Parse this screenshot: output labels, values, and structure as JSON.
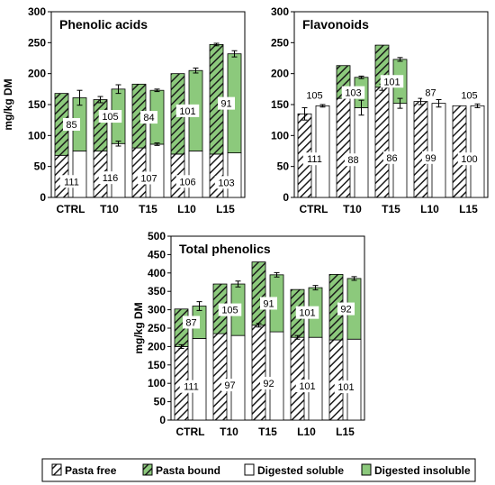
{
  "legend": [
    {
      "label": "Pasta free",
      "swatch": "pasta-free"
    },
    {
      "label": "Pasta bound",
      "swatch": "pasta-bound"
    },
    {
      "label": "Digested soluble",
      "swatch": "digested-soluble"
    },
    {
      "label": "Digested insoluble",
      "swatch": "digested-insoluble"
    }
  ],
  "colors": {
    "green_fill": "#8cc97c",
    "hatch_stroke": "#1a1a1a",
    "border": "#000000"
  },
  "chart_data": [
    {
      "type": "bar",
      "title": "Phenolic acids",
      "ylabel": "mg/kg DM",
      "ylim": [
        0,
        300
      ],
      "yticks": [
        0,
        50,
        100,
        150,
        200,
        250,
        300
      ],
      "categories": [
        "CTRL",
        "T10",
        "T15",
        "L10",
        "L15"
      ],
      "series": [
        {
          "name": "Pasta free",
          "values": [
            68,
            75,
            80,
            70,
            70
          ]
        },
        {
          "name": "Pasta bound",
          "values": [
            100,
            83,
            103,
            130,
            177
          ]
        },
        {
          "name": "Digested soluble",
          "values": [
            75,
            87,
            86,
            75,
            72
          ]
        },
        {
          "name": "Digested insoluble",
          "values": [
            86,
            88,
            87,
            130,
            160
          ]
        }
      ],
      "pasta_total_err": [
        0,
        5,
        0,
        0,
        2
      ],
      "digested_total_err": [
        12,
        7,
        2,
        4,
        5
      ],
      "soluble_err": [
        0,
        4,
        2,
        0,
        0
      ],
      "free_err": [
        0,
        0,
        0,
        0,
        0
      ],
      "labels_soluble": [
        "111",
        "116",
        "107",
        "106",
        "103"
      ],
      "labels_insoluble": [
        "85",
        "105",
        "84",
        "101",
        "91"
      ]
    },
    {
      "type": "bar",
      "title": "Flavonoids",
      "ylabel": "",
      "ylim": [
        0,
        300
      ],
      "yticks": [
        0,
        50,
        100,
        150,
        200,
        250,
        300
      ],
      "categories": [
        "CTRL",
        "T10",
        "T15",
        "L10",
        "L15"
      ],
      "series": [
        {
          "name": "Pasta free",
          "values": [
            135,
            160,
            178,
            155,
            148
          ]
        },
        {
          "name": "Pasta bound",
          "values": [
            0,
            53,
            68,
            0,
            0
          ]
        },
        {
          "name": "Digested soluble",
          "values": [
            148,
            145,
            152,
            152,
            148
          ]
        },
        {
          "name": "Digested insoluble",
          "values": [
            0,
            49,
            71,
            0,
            0
          ]
        }
      ],
      "pasta_total_err": [
        10,
        0,
        0,
        5,
        0
      ],
      "digested_total_err": [
        2,
        2,
        3,
        6,
        3
      ],
      "soluble_err": [
        2,
        12,
        8,
        6,
        3
      ],
      "free_err": [
        10,
        0,
        5,
        5,
        0
      ],
      "labels_soluble": [
        "111",
        "88",
        "86",
        "99",
        "100"
      ],
      "labels_insoluble": [
        "105",
        "103",
        "101",
        "87",
        "105"
      ]
    },
    {
      "type": "bar",
      "title": "Total phenolics",
      "ylabel": "mg/kg DM",
      "ylim": [
        0,
        500
      ],
      "yticks": [
        0,
        50,
        100,
        150,
        200,
        250,
        300,
        350,
        400,
        450,
        500
      ],
      "categories": [
        "CTRL",
        "T10",
        "T15",
        "L10",
        "L15"
      ],
      "series": [
        {
          "name": "Pasta free",
          "values": [
            200,
            235,
            258,
            225,
            218
          ]
        },
        {
          "name": "Pasta bound",
          "values": [
            102,
            135,
            172,
            130,
            178
          ]
        },
        {
          "name": "Digested soluble",
          "values": [
            222,
            230,
            240,
            225,
            220
          ]
        },
        {
          "name": "Digested insoluble",
          "values": [
            88,
            140,
            155,
            135,
            165
          ]
        }
      ],
      "pasta_total_err": [
        0,
        0,
        0,
        0,
        0
      ],
      "digested_total_err": [
        12,
        8,
        6,
        6,
        5
      ],
      "soluble_err": [
        0,
        0,
        0,
        0,
        0
      ],
      "free_err": [
        5,
        0,
        5,
        5,
        0
      ],
      "labels_soluble": [
        "111",
        "97",
        "92",
        "101",
        "101"
      ],
      "labels_insoluble": [
        "87",
        "105",
        "91",
        "101",
        "92"
      ]
    }
  ]
}
